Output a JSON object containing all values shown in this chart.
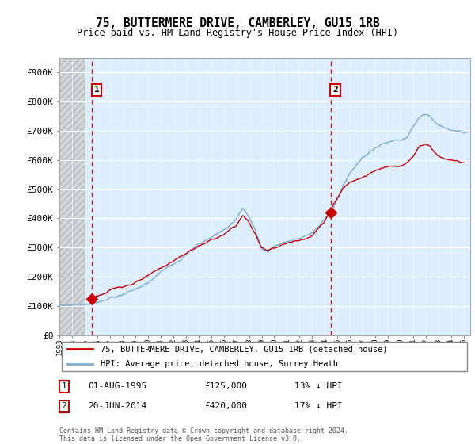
{
  "title": "75, BUTTERMERE DRIVE, CAMBERLEY, GU15 1RB",
  "subtitle": "Price paid vs. HM Land Registry's House Price Index (HPI)",
  "ylabel_ticks": [
    "£0",
    "£100K",
    "£200K",
    "£300K",
    "£400K",
    "£500K",
    "£600K",
    "£700K",
    "£800K",
    "£900K"
  ],
  "ytick_values": [
    0,
    100000,
    200000,
    300000,
    400000,
    500000,
    600000,
    700000,
    800000,
    900000
  ],
  "ylim": [
    0,
    950000
  ],
  "xlim_start": 1993.0,
  "xlim_end": 2025.5,
  "purchase1": {
    "date_num": 1995.58,
    "price": 125000,
    "label": "1",
    "date_str": "01-AUG-1995",
    "price_str": "£125,000",
    "hpi_str": "13% ↓ HPI"
  },
  "purchase2": {
    "date_num": 2014.47,
    "price": 420000,
    "label": "2",
    "date_str": "20-JUN-2014",
    "price_str": "£420,000",
    "hpi_str": "17% ↓ HPI"
  },
  "hpi_color": "#7aadd4",
  "price_color": "#cc0000",
  "dashed_line_color": "#cc0000",
  "bg_color": "#ddeeff",
  "legend_label_red": "75, BUTTERMERE DRIVE, CAMBERLEY, GU15 1RB (detached house)",
  "legend_label_blue": "HPI: Average price, detached house, Surrey Heath",
  "footnote": "Contains HM Land Registry data © Crown copyright and database right 2024.\nThis data is licensed under the Open Government Licence v3.0.",
  "x_tick_years": [
    1993,
    1994,
    1995,
    1996,
    1997,
    1998,
    1999,
    2000,
    2001,
    2002,
    2003,
    2004,
    2005,
    2006,
    2007,
    2008,
    2009,
    2010,
    2011,
    2012,
    2013,
    2014,
    2015,
    2016,
    2017,
    2018,
    2019,
    2020,
    2021,
    2022,
    2023,
    2024,
    2025
  ],
  "hpi_anchors_x": [
    1993,
    1994,
    1995,
    1996,
    1997,
    1998,
    1999,
    2000,
    2001,
    2002,
    2003,
    2004,
    2005,
    2006,
    2007,
    2007.5,
    2008,
    2008.5,
    2009,
    2009.5,
    2010,
    2011,
    2012,
    2013,
    2013.5,
    2014,
    2014.5,
    2015,
    2015.5,
    2016,
    2016.5,
    2017,
    2017.5,
    2018,
    2018.5,
    2019,
    2019.5,
    2020,
    2020.5,
    2021,
    2021.5,
    2022,
    2022.3,
    2022.6,
    2023,
    2023.5,
    2024,
    2025
  ],
  "hpi_anchors_y": [
    100000,
    108000,
    118000,
    130000,
    143000,
    158000,
    175000,
    195000,
    225000,
    255000,
    290000,
    330000,
    355000,
    380000,
    420000,
    460000,
    430000,
    385000,
    320000,
    310000,
    330000,
    345000,
    355000,
    375000,
    395000,
    415000,
    440000,
    490000,
    535000,
    575000,
    600000,
    625000,
    640000,
    650000,
    655000,
    660000,
    665000,
    660000,
    670000,
    710000,
    745000,
    755000,
    750000,
    730000,
    710000,
    700000,
    700000,
    695000
  ],
  "red_anchors_x": [
    1995.58,
    1996,
    1997,
    1998,
    1999,
    2000,
    2001,
    2002,
    2003,
    2004,
    2005,
    2006,
    2007,
    2007.5,
    2008,
    2008.5,
    2009,
    2009.5,
    2010,
    2011,
    2012,
    2013,
    2013.5,
    2014,
    2014.47,
    2015,
    2015.5,
    2016,
    2016.5,
    2017,
    2017.5,
    2018,
    2018.5,
    2019,
    2019.5,
    2020,
    2020.5,
    2021,
    2021.5,
    2022,
    2022.3,
    2022.6,
    2023,
    2023.5,
    2024,
    2025
  ],
  "red_anchors_y": [
    125000,
    135000,
    150000,
    165000,
    180000,
    195000,
    220000,
    245000,
    270000,
    295000,
    315000,
    330000,
    360000,
    395000,
    370000,
    330000,
    280000,
    275000,
    285000,
    300000,
    310000,
    330000,
    355000,
    380000,
    420000,
    455000,
    490000,
    510000,
    525000,
    535000,
    545000,
    555000,
    560000,
    565000,
    570000,
    570000,
    580000,
    605000,
    640000,
    650000,
    645000,
    625000,
    610000,
    600000,
    600000,
    590000
  ]
}
